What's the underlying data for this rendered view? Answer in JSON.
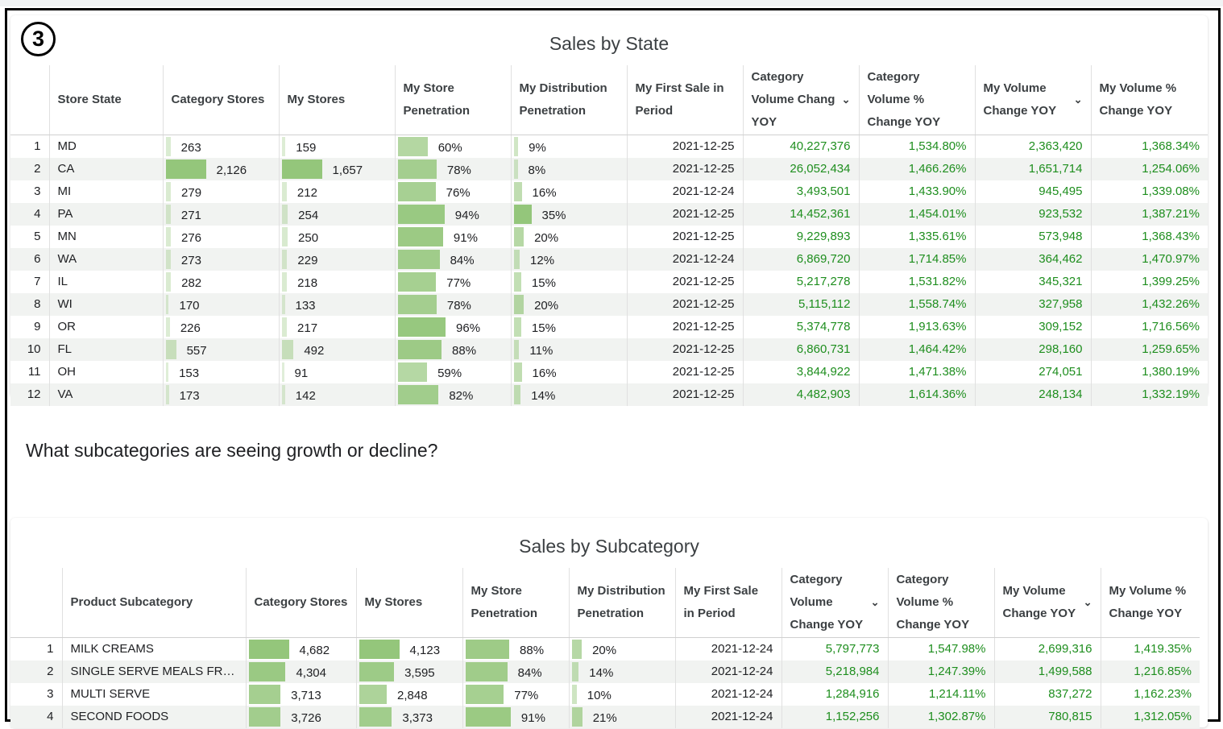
{
  "badge": "3",
  "state_table": {
    "title": "Sales by State",
    "columns": [
      "Store State",
      "Category Stores",
      "My Stores",
      "My Store Penetration",
      "My Distribution Penetration",
      "My First Sale in Period",
      "Category Volume Change YOY",
      "Category Volume % Change YOY",
      "My Volume Change YOY",
      "My Volume % Change YOY"
    ],
    "header_lines": [
      [
        "Store State"
      ],
      [
        "Category Stores"
      ],
      [
        "My Stores"
      ],
      [
        "My Store",
        "Penetration"
      ],
      [
        "My Distribution",
        "Penetration"
      ],
      [
        "My First Sale in",
        "Period"
      ],
      [
        "Category",
        "Volume Chang",
        "YOY"
      ],
      [
        "Category",
        "Volume %",
        "Change YOY"
      ],
      [
        "My Volume",
        "Change YOY"
      ],
      [
        "My Volume %",
        "Change YOY"
      ]
    ],
    "rows": [
      {
        "idx": "1",
        "state": "MD",
        "cat_stores": 263,
        "cat_stores_label": "263",
        "my_stores": 159,
        "my_stores_label": "159",
        "store_pen": 60,
        "store_pen_label": "60%",
        "dist_pen": 9,
        "dist_pen_label": "9%",
        "first_sale": "2021-12-25",
        "cat_vol": "40,227,376",
        "cat_vol_pct": "1,534.80%",
        "my_vol": "2,363,420",
        "my_vol_pct": "1,368.34%"
      },
      {
        "idx": "2",
        "state": "CA",
        "cat_stores": 2126,
        "cat_stores_label": "2,126",
        "my_stores": 1657,
        "my_stores_label": "1,657",
        "store_pen": 78,
        "store_pen_label": "78%",
        "dist_pen": 8,
        "dist_pen_label": "8%",
        "first_sale": "2021-12-25",
        "cat_vol": "26,052,434",
        "cat_vol_pct": "1,466.26%",
        "my_vol": "1,651,714",
        "my_vol_pct": "1,254.06%"
      },
      {
        "idx": "3",
        "state": "MI",
        "cat_stores": 279,
        "cat_stores_label": "279",
        "my_stores": 212,
        "my_stores_label": "212",
        "store_pen": 76,
        "store_pen_label": "76%",
        "dist_pen": 16,
        "dist_pen_label": "16%",
        "first_sale": "2021-12-24",
        "cat_vol": "3,493,501",
        "cat_vol_pct": "1,433.90%",
        "my_vol": "945,495",
        "my_vol_pct": "1,339.08%"
      },
      {
        "idx": "4",
        "state": "PA",
        "cat_stores": 271,
        "cat_stores_label": "271",
        "my_stores": 254,
        "my_stores_label": "254",
        "store_pen": 94,
        "store_pen_label": "94%",
        "dist_pen": 35,
        "dist_pen_label": "35%",
        "first_sale": "2021-12-25",
        "cat_vol": "14,452,361",
        "cat_vol_pct": "1,454.01%",
        "my_vol": "923,532",
        "my_vol_pct": "1,387.21%"
      },
      {
        "idx": "5",
        "state": "MN",
        "cat_stores": 276,
        "cat_stores_label": "276",
        "my_stores": 250,
        "my_stores_label": "250",
        "store_pen": 91,
        "store_pen_label": "91%",
        "dist_pen": 20,
        "dist_pen_label": "20%",
        "first_sale": "2021-12-25",
        "cat_vol": "9,229,893",
        "cat_vol_pct": "1,335.61%",
        "my_vol": "573,948",
        "my_vol_pct": "1,368.43%"
      },
      {
        "idx": "6",
        "state": "WA",
        "cat_stores": 273,
        "cat_stores_label": "273",
        "my_stores": 229,
        "my_stores_label": "229",
        "store_pen": 84,
        "store_pen_label": "84%",
        "dist_pen": 12,
        "dist_pen_label": "12%",
        "first_sale": "2021-12-24",
        "cat_vol": "6,869,720",
        "cat_vol_pct": "1,714.85%",
        "my_vol": "364,462",
        "my_vol_pct": "1,470.97%"
      },
      {
        "idx": "7",
        "state": "IL",
        "cat_stores": 282,
        "cat_stores_label": "282",
        "my_stores": 218,
        "my_stores_label": "218",
        "store_pen": 77,
        "store_pen_label": "77%",
        "dist_pen": 15,
        "dist_pen_label": "15%",
        "first_sale": "2021-12-25",
        "cat_vol": "5,217,278",
        "cat_vol_pct": "1,531.82%",
        "my_vol": "345,321",
        "my_vol_pct": "1,399.25%"
      },
      {
        "idx": "8",
        "state": "WI",
        "cat_stores": 170,
        "cat_stores_label": "170",
        "my_stores": 133,
        "my_stores_label": "133",
        "store_pen": 78,
        "store_pen_label": "78%",
        "dist_pen": 20,
        "dist_pen_label": "20%",
        "first_sale": "2021-12-25",
        "cat_vol": "5,115,112",
        "cat_vol_pct": "1,558.74%",
        "my_vol": "327,958",
        "my_vol_pct": "1,432.26%"
      },
      {
        "idx": "9",
        "state": "OR",
        "cat_stores": 226,
        "cat_stores_label": "226",
        "my_stores": 217,
        "my_stores_label": "217",
        "store_pen": 96,
        "store_pen_label": "96%",
        "dist_pen": 15,
        "dist_pen_label": "15%",
        "first_sale": "2021-12-25",
        "cat_vol": "5,374,778",
        "cat_vol_pct": "1,913.63%",
        "my_vol": "309,152",
        "my_vol_pct": "1,716.56%"
      },
      {
        "idx": "10",
        "state": "FL",
        "cat_stores": 557,
        "cat_stores_label": "557",
        "my_stores": 492,
        "my_stores_label": "492",
        "store_pen": 88,
        "store_pen_label": "88%",
        "dist_pen": 11,
        "dist_pen_label": "11%",
        "first_sale": "2021-12-25",
        "cat_vol": "6,860,731",
        "cat_vol_pct": "1,464.42%",
        "my_vol": "298,160",
        "my_vol_pct": "1,259.65%"
      },
      {
        "idx": "11",
        "state": "OH",
        "cat_stores": 153,
        "cat_stores_label": "153",
        "my_stores": 91,
        "my_stores_label": "91",
        "store_pen": 59,
        "store_pen_label": "59%",
        "dist_pen": 16,
        "dist_pen_label": "16%",
        "first_sale": "2021-12-25",
        "cat_vol": "3,844,922",
        "cat_vol_pct": "1,471.38%",
        "my_vol": "274,051",
        "my_vol_pct": "1,380.19%"
      },
      {
        "idx": "12",
        "state": "VA",
        "cat_stores": 173,
        "cat_stores_label": "173",
        "my_stores": 142,
        "my_stores_label": "142",
        "store_pen": 82,
        "store_pen_label": "82%",
        "dist_pen": 14,
        "dist_pen_label": "14%",
        "first_sale": "2021-12-25",
        "cat_vol": "4,482,903",
        "cat_vol_pct": "1,614.36%",
        "my_vol": "248,134",
        "my_vol_pct": "1,332.19%"
      }
    ]
  },
  "question": "What subcategories are seeing growth or decline?",
  "sub_table": {
    "title": "Sales by Subcategory",
    "columns": [
      "Product Subcategory",
      "Category Stores",
      "My Stores",
      "My Store Penetration",
      "My Distribution Penetration",
      "My First Sale in Period",
      "Category Volume Change YOY",
      "Category Volume % Change YOY",
      "My Volume Change YOY",
      "My Volume % Change YOY"
    ],
    "header_lines": [
      [
        "Product Subcategory"
      ],
      [
        "Category Stores"
      ],
      [
        "My Stores"
      ],
      [
        "My Store",
        "Penetration"
      ],
      [
        "My Distribution",
        "Penetration"
      ],
      [
        "My First Sale",
        "in Period"
      ],
      [
        "Category",
        "Volume",
        "Change YOY"
      ],
      [
        "Category",
        "Volume %",
        "Change YOY"
      ],
      [
        "My Volume",
        "Change YOY"
      ],
      [
        "My Volume %",
        "Change YOY"
      ]
    ],
    "rows": [
      {
        "idx": "1",
        "state": "MILK CREAMS",
        "cat_stores": 4682,
        "cat_stores_label": "4,682",
        "my_stores": 4123,
        "my_stores_label": "4,123",
        "store_pen": 88,
        "store_pen_label": "88%",
        "dist_pen": 20,
        "dist_pen_label": "20%",
        "first_sale": "2021-12-24",
        "cat_vol": "5,797,773",
        "cat_vol_pct": "1,547.98%",
        "my_vol": "2,699,316",
        "my_vol_pct": "1,419.35%"
      },
      {
        "idx": "2",
        "state": "SINGLE SERVE MEALS FR…",
        "cat_stores": 4304,
        "cat_stores_label": "4,304",
        "my_stores": 3595,
        "my_stores_label": "3,595",
        "store_pen": 84,
        "store_pen_label": "84%",
        "dist_pen": 14,
        "dist_pen_label": "14%",
        "first_sale": "2021-12-24",
        "cat_vol": "5,218,984",
        "cat_vol_pct": "1,247.39%",
        "my_vol": "1,499,588",
        "my_vol_pct": "1,216.85%"
      },
      {
        "idx": "3",
        "state": "MULTI SERVE",
        "cat_stores": 3713,
        "cat_stores_label": "3,713",
        "my_stores": 2848,
        "my_stores_label": "2,848",
        "store_pen": 77,
        "store_pen_label": "77%",
        "dist_pen": 10,
        "dist_pen_label": "10%",
        "first_sale": "2021-12-24",
        "cat_vol": "1,284,916",
        "cat_vol_pct": "1,214.11%",
        "my_vol": "837,272",
        "my_vol_pct": "1,162.23%"
      },
      {
        "idx": "4",
        "state": "SECOND FOODS",
        "cat_stores": 3726,
        "cat_stores_label": "3,726",
        "my_stores": 3373,
        "my_stores_label": "3,373",
        "store_pen": 91,
        "store_pen_label": "91%",
        "dist_pen": 21,
        "dist_pen_label": "21%",
        "first_sale": "2021-12-24",
        "cat_vol": "1,152,256",
        "cat_vol_pct": "1,302.87%",
        "my_vol": "780,815",
        "my_vol_pct": "1,312.05%"
      }
    ]
  },
  "colors": {
    "bar": "#94c67b",
    "positive": "#1e8e1e"
  }
}
